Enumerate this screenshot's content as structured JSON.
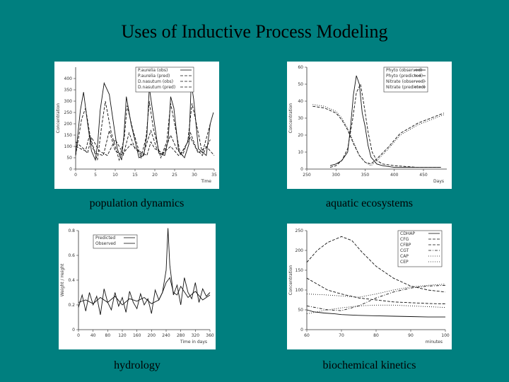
{
  "title": "Uses of Inductive Process Modeling",
  "colors": {
    "background": "#007f7f",
    "panel": "#ffffff",
    "ink": "#000000"
  },
  "panels": [
    {
      "caption": "population dynamics"
    },
    {
      "caption": "aquatic ecosystems"
    },
    {
      "caption": "hydrology"
    },
    {
      "caption": "biochemical kinetics"
    }
  ],
  "chart_data": [
    {
      "type": "line",
      "title": "",
      "xlabel": "Time",
      "ylabel": "Concentration",
      "xlim": [
        0,
        35
      ],
      "ylim": [
        0,
        450
      ],
      "xticks": [
        "0",
        "5",
        "10",
        "15",
        "20",
        "25",
        "30",
        "35"
      ],
      "yticks": [
        "0",
        "50",
        "100",
        "150",
        "200",
        "250",
        "300",
        "350",
        "400"
      ],
      "legend_position": "top-right",
      "series": [
        {
          "name": "P.aurelia (obs)",
          "style": "solid",
          "x": [
            0,
            1.2,
            2,
            2.8,
            4,
            5,
            5.6,
            6.2,
            7.2,
            8.5,
            10.5,
            11.6,
            12.2,
            12.8,
            14,
            16,
            17.2,
            18,
            18.6,
            19.5,
            21,
            22.5,
            23.4,
            24,
            24.8,
            26,
            27.5,
            28.6,
            29.2,
            29.8,
            31,
            33,
            34,
            34.8
          ],
          "y": [
            60,
            260,
            340,
            230,
            80,
            40,
            120,
            260,
            380,
            330,
            90,
            40,
            150,
            320,
            200,
            50,
            60,
            150,
            360,
            250,
            70,
            60,
            130,
            320,
            270,
            80,
            50,
            110,
            380,
            310,
            90,
            60,
            200,
            250
          ]
        },
        {
          "name": "P.aurelia (pred)",
          "style": "dashed",
          "x": [
            0,
            1.5,
            2.5,
            4,
            5.5,
            6.5,
            7.5,
            9,
            11,
            12.3,
            13,
            14.5,
            16.5,
            17.8,
            18.6,
            19.6,
            21.5,
            23,
            24,
            25,
            26.5,
            28.3,
            29.4,
            30.4,
            32,
            34
          ],
          "y": [
            60,
            220,
            270,
            110,
            40,
            180,
            300,
            160,
            40,
            140,
            280,
            170,
            50,
            140,
            300,
            180,
            50,
            120,
            290,
            200,
            60,
            120,
            290,
            210,
            70,
            200
          ]
        },
        {
          "name": "D.nasutum (obs)",
          "style": "dashed",
          "x": [
            0,
            2,
            3,
            4,
            6,
            8,
            10,
            11,
            12,
            14,
            16,
            18,
            19,
            20,
            22,
            24,
            26,
            27,
            29,
            31,
            33,
            35
          ],
          "y": [
            120,
            90,
            70,
            140,
            80,
            60,
            130,
            100,
            70,
            110,
            80,
            60,
            120,
            90,
            70,
            100,
            60,
            80,
            140,
            70,
            100,
            60
          ]
        },
        {
          "name": "D.nasutum (pred)",
          "style": "dashed",
          "x": [
            0,
            2.5,
            3.5,
            5,
            7,
            8.5,
            10,
            12,
            13.5,
            15,
            17,
            19,
            20.5,
            22,
            24,
            25.5,
            27,
            29,
            30.5,
            32,
            34
          ],
          "y": [
            100,
            80,
            150,
            70,
            60,
            170,
            80,
            60,
            160,
            90,
            60,
            170,
            90,
            60,
            150,
            90,
            60,
            160,
            90,
            60,
            130
          ]
        }
      ]
    },
    {
      "type": "line",
      "title": "",
      "xlabel": "Days",
      "ylabel": "Concentration",
      "xlim": [
        250,
        490
      ],
      "ylim": [
        0,
        60
      ],
      "xticks": [
        "250",
        "300",
        "350",
        "400",
        "450"
      ],
      "yticks": [
        "0",
        "10",
        "20",
        "30",
        "40",
        "50",
        "60"
      ],
      "legend_position": "top-right",
      "series": [
        {
          "name": "Phyto (observed)",
          "style": "solid",
          "x": [
            290,
            300,
            310,
            320,
            325,
            330,
            335,
            340,
            345,
            350,
            355,
            360,
            370,
            380,
            400,
            440,
            480
          ],
          "y": [
            2,
            3,
            5,
            10,
            25,
            44,
            55,
            50,
            33,
            25,
            14,
            7,
            3,
            2,
            1,
            1,
            1
          ]
        },
        {
          "name": "Phyto (predicted)",
          "style": "dashed",
          "x": [
            290,
            300,
            310,
            320,
            328,
            335,
            342,
            348,
            355,
            362,
            370,
            380,
            400,
            440,
            480
          ],
          "y": [
            1,
            2,
            5,
            12,
            28,
            45,
            50,
            38,
            22,
            10,
            5,
            3,
            2,
            1,
            1
          ]
        },
        {
          "name": "Nitrate (observed)",
          "style": "dotted",
          "x": [
            260,
            280,
            300,
            310,
            320,
            330,
            340,
            350,
            360,
            370,
            390,
            410,
            440,
            470,
            485
          ],
          "y": [
            38,
            37,
            34,
            30,
            24,
            16,
            8,
            4,
            2,
            5,
            12,
            20,
            26,
            30,
            32
          ]
        },
        {
          "name": "Nitrate (predicted)",
          "style": "dashed",
          "x": [
            260,
            280,
            300,
            310,
            320,
            330,
            340,
            350,
            360,
            370,
            390,
            410,
            440,
            470,
            485
          ],
          "y": [
            37,
            36,
            33,
            29,
            23,
            15,
            8,
            4,
            3,
            6,
            13,
            21,
            27,
            31,
            33
          ]
        }
      ]
    },
    {
      "type": "line",
      "title": "",
      "xlabel": "Time in days",
      "ylabel": "Weight / Height",
      "xlim": [
        0,
        360
      ],
      "ylim": [
        0,
        0.8
      ],
      "xticks": [
        "0",
        "40",
        "80",
        "120",
        "160",
        "200",
        "240",
        "280",
        "320",
        "360"
      ],
      "yticks": [
        "0",
        "0.2",
        "0.4",
        "0.6",
        "0.8"
      ],
      "legend_position": "top-left",
      "series": [
        {
          "name": "Predicted",
          "style": "solid",
          "x": [
            0,
            20,
            40,
            60,
            80,
            100,
            120,
            140,
            160,
            180,
            200,
            220,
            230,
            240,
            250,
            260,
            270,
            280,
            300,
            320,
            340,
            360
          ],
          "y": [
            0.22,
            0.24,
            0.21,
            0.26,
            0.22,
            0.27,
            0.2,
            0.25,
            0.23,
            0.26,
            0.21,
            0.24,
            0.3,
            0.38,
            0.42,
            0.3,
            0.28,
            0.35,
            0.26,
            0.31,
            0.24,
            0.28
          ]
        },
        {
          "name": "Observed",
          "style": "solid",
          "x": [
            0,
            10,
            20,
            30,
            40,
            50,
            60,
            70,
            80,
            90,
            100,
            110,
            120,
            130,
            140,
            150,
            160,
            170,
            180,
            190,
            200,
            210,
            220,
            230,
            240,
            245,
            250,
            255,
            260,
            270,
            280,
            290,
            300,
            310,
            320,
            330,
            340,
            350,
            360
          ],
          "y": [
            0.18,
            0.28,
            0.15,
            0.3,
            0.2,
            0.27,
            0.12,
            0.33,
            0.22,
            0.16,
            0.3,
            0.19,
            0.26,
            0.14,
            0.31,
            0.22,
            0.17,
            0.29,
            0.2,
            0.25,
            0.13,
            0.32,
            0.24,
            0.3,
            0.48,
            0.82,
            0.52,
            0.4,
            0.28,
            0.36,
            0.2,
            0.42,
            0.3,
            0.25,
            0.38,
            0.22,
            0.33,
            0.27,
            0.3
          ]
        }
      ]
    },
    {
      "type": "line",
      "title": "",
      "xlabel": "minutes",
      "ylabel": "Concentration",
      "xlim": [
        60,
        100
      ],
      "ylim": [
        0,
        250
      ],
      "xticks": [
        "60",
        "70",
        "80",
        "90",
        "100"
      ],
      "yticks": [
        "0",
        "50",
        "100",
        "150",
        "200",
        "250"
      ],
      "legend_position": "top-right",
      "series": [
        {
          "name": "CDHAP",
          "style": "solid",
          "x": [
            60,
            62,
            65,
            68,
            70,
            75,
            80,
            85,
            90,
            95,
            100
          ],
          "y": [
            50,
            45,
            42,
            40,
            38,
            36,
            35,
            34,
            33,
            32,
            32
          ]
        },
        {
          "name": "CFG",
          "style": "dashed",
          "x": [
            60,
            63,
            66,
            70,
            73,
            76,
            80,
            85,
            90,
            95,
            100
          ],
          "y": [
            170,
            200,
            220,
            235,
            225,
            195,
            160,
            130,
            110,
            100,
            95
          ]
        },
        {
          "name": "CFBP",
          "style": "dashed",
          "x": [
            60,
            63,
            66,
            70,
            75,
            80,
            85,
            90,
            95,
            100
          ],
          "y": [
            130,
            115,
            100,
            90,
            80,
            75,
            70,
            68,
            66,
            65
          ]
        },
        {
          "name": "CGT",
          "style": "dashdot",
          "x": [
            60,
            63,
            66,
            70,
            75,
            80,
            85,
            90,
            95,
            100
          ],
          "y": [
            60,
            55,
            50,
            48,
            60,
            80,
            95,
            105,
            110,
            112
          ]
        },
        {
          "name": "CAP",
          "style": "dotted",
          "x": [
            60,
            65,
            70,
            75,
            80,
            85,
            90,
            95,
            100
          ],
          "y": [
            90,
            88,
            85,
            82,
            90,
            100,
            108,
            112,
            115
          ]
        },
        {
          "name": "CEP",
          "style": "dotted",
          "x": [
            60,
            63,
            66,
            70,
            75,
            80,
            85,
            90,
            95,
            100
          ],
          "y": [
            40,
            45,
            50,
            55,
            60,
            62,
            62,
            60,
            58,
            56
          ]
        }
      ]
    }
  ]
}
